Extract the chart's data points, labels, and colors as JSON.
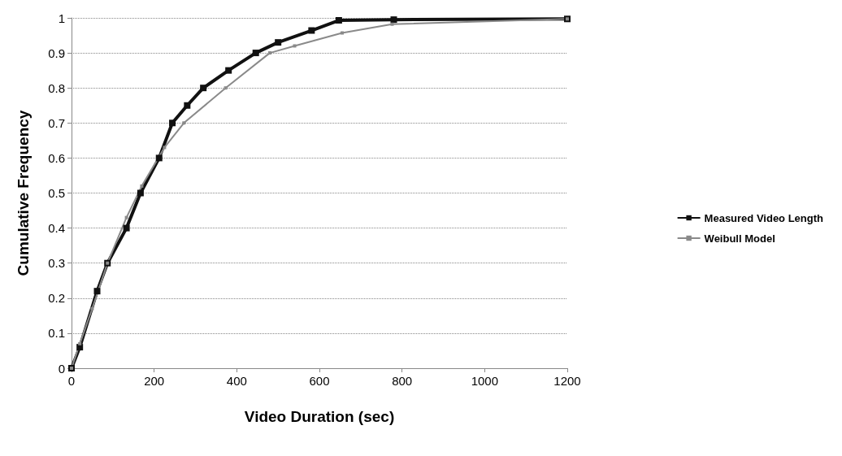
{
  "chart_data": {
    "type": "line",
    "xlabel": "Video Duration (sec)",
    "ylabel": "Cumulative Frequency",
    "xlim": [
      0,
      1200
    ],
    "xticks": [
      0,
      200,
      400,
      600,
      800,
      1000,
      1200
    ],
    "ylim": [
      0,
      1
    ],
    "yticks": [
      0,
      0.1,
      0.2,
      0.3,
      0.4,
      0.5,
      0.6,
      0.7,
      0.8,
      0.9,
      1
    ],
    "grid": "y",
    "legend": "right",
    "marker": "square",
    "line_style": "solid",
    "series": [
      {
        "name": "Measured Video Length",
        "color": "#111111",
        "x": [
          0,
          20,
          62,
          87,
          133,
          167,
          212,
          244,
          280,
          319,
          380,
          446,
          500,
          581,
          647,
          780,
          1200
        ],
        "values": [
          0,
          0.06,
          0.22,
          0.3,
          0.4,
          0.5,
          0.6,
          0.7,
          0.75,
          0.8,
          0.85,
          0.9,
          0.93,
          0.964,
          0.993,
          0.995,
          0.997
        ]
      },
      {
        "name": "Weibull Model",
        "color": "#8a8a8a",
        "x": [
          0,
          20,
          50,
          87,
          133,
          170,
          225,
          272,
          373,
          480,
          540,
          655,
          776,
          1200
        ],
        "values": [
          0,
          0.07,
          0.17,
          0.3,
          0.43,
          0.52,
          0.63,
          0.7,
          0.8,
          0.9,
          0.92,
          0.957,
          0.982,
          0.997
        ]
      }
    ]
  }
}
